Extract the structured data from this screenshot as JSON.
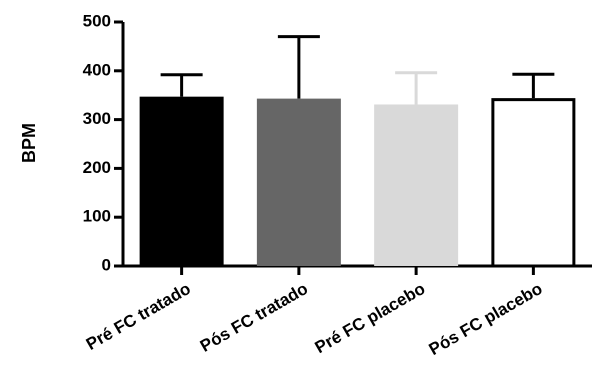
{
  "chart_data": {
    "type": "bar",
    "title": "",
    "xlabel": "",
    "ylabel": "BPM",
    "ylim": [
      0,
      500
    ],
    "yticks": [
      0,
      100,
      200,
      300,
      400,
      500
    ],
    "grid": false,
    "legend": "none",
    "categories": [
      "Pré FC tratado",
      "Pós FC tratado",
      "Pré FC placebo",
      "Pós FC placebo"
    ],
    "values": [
      347,
      343,
      331,
      344
    ],
    "error_upper": [
      45,
      127,
      65,
      49
    ],
    "colors": {
      "fill": [
        "#000000",
        "#666666",
        "#d9d9d9",
        "#ffffff"
      ],
      "stroke": [
        "#000000",
        "#666666",
        "#d9d9d9",
        "#000000"
      ],
      "error_bar": [
        "#000000",
        "#000000",
        "#d9d9d9",
        "#000000"
      ]
    }
  }
}
